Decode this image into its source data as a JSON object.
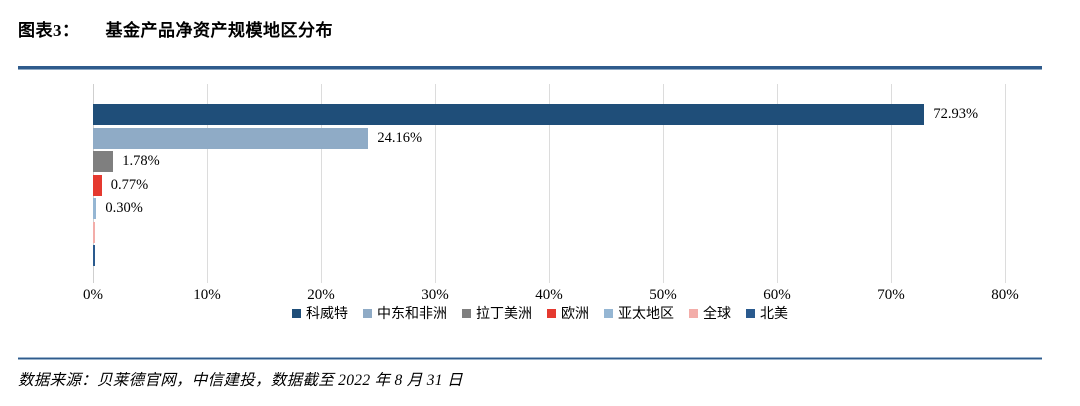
{
  "figure": {
    "title_prefix": "图表3：",
    "title_text": "基金产品净资产规模地区分布",
    "source_note": "数据来源：贝莱德官网，中信建投，数据截至 2022 年 8 月 31 日"
  },
  "colors": {
    "divider": "#2F5B8C",
    "gridline": "#DCDCDC",
    "text": "#000000"
  },
  "chart_data": {
    "type": "bar",
    "orientation": "horizontal",
    "title": "基金产品净资产规模地区分布",
    "xlabel": "",
    "ylabel": "",
    "xlim": [
      0,
      80
    ],
    "x_ticks": [
      "0%",
      "10%",
      "20%",
      "30%",
      "40%",
      "50%",
      "60%",
      "70%",
      "80%"
    ],
    "grid": "vertical-only",
    "legend_position": "bottom",
    "categories": [
      "科威特",
      "中东和非洲",
      "拉丁美洲",
      "欧洲",
      "亚太地区",
      "全球",
      "北美"
    ],
    "values": [
      72.93,
      24.16,
      1.78,
      0.77,
      0.3,
      0.04,
      0.02
    ],
    "data_labels": [
      "72.93%",
      "24.16%",
      "1.78%",
      "0.77%",
      "0.30%",
      "",
      ""
    ],
    "bar_colors": [
      "#1F4E79",
      "#8FABC6",
      "#7F7F7F",
      "#E5392F",
      "#95B6D3",
      "#F3ADA9",
      "#2A5A8E"
    ],
    "legend_items": [
      {
        "label": "科威特",
        "color": "#1F4E79"
      },
      {
        "label": "中东和非洲",
        "color": "#8FABC6"
      },
      {
        "label": "拉丁美洲",
        "color": "#7F7F7F"
      },
      {
        "label": "欧洲",
        "color": "#E5392F"
      },
      {
        "label": "亚太地区",
        "color": "#95B6D3"
      },
      {
        "label": "全球",
        "color": "#F3ADA9"
      },
      {
        "label": "北美",
        "color": "#2A5A8E"
      }
    ]
  }
}
